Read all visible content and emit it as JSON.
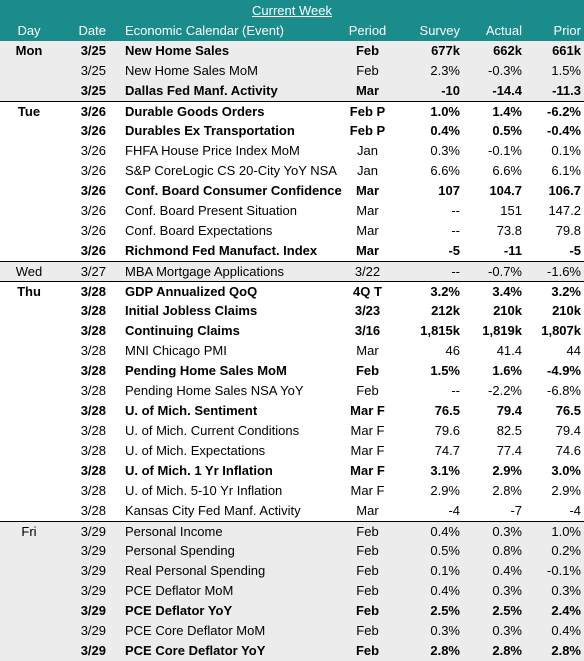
{
  "title": "Current Week",
  "headers": {
    "day": "Day",
    "date": "Date",
    "event": "Economic Calendar (Event)",
    "period": "Period",
    "survey": "Survey",
    "actual": "Actual",
    "prior": "Prior"
  },
  "rows": [
    {
      "day": "Mon",
      "date": "3/25",
      "event": "New Home Sales",
      "period": "Feb",
      "survey": "677k",
      "actual": "662k",
      "prior": "661k",
      "bold": true,
      "shade": true,
      "first": false
    },
    {
      "day": "",
      "date": "3/25",
      "event": "New Home Sales MoM",
      "period": "Feb",
      "survey": "2.3%",
      "actual": "-0.3%",
      "prior": "1.5%",
      "bold": false,
      "shade": true,
      "first": false
    },
    {
      "day": "",
      "date": "3/25",
      "event": "Dallas Fed Manf. Activity",
      "period": "Mar",
      "survey": "-10",
      "actual": "-14.4",
      "prior": "-11.3",
      "bold": true,
      "shade": true,
      "first": false
    },
    {
      "day": "Tue",
      "date": "3/26",
      "event": "Durable Goods Orders",
      "period": "Feb P",
      "survey": "1.0%",
      "actual": "1.4%",
      "prior": "-6.2%",
      "bold": true,
      "shade": false,
      "first": true
    },
    {
      "day": "",
      "date": "3/26",
      "event": "Durables Ex Transportation",
      "period": "Feb P",
      "survey": "0.4%",
      "actual": "0.5%",
      "prior": "-0.4%",
      "bold": true,
      "shade": false,
      "first": false
    },
    {
      "day": "",
      "date": "3/26",
      "event": "FHFA House Price Index MoM",
      "period": "Jan",
      "survey": "0.3%",
      "actual": "-0.1%",
      "prior": "0.1%",
      "bold": false,
      "shade": false,
      "first": false
    },
    {
      "day": "",
      "date": "3/26",
      "event": "S&P CoreLogic CS 20-City YoY NSA",
      "period": "Jan",
      "survey": "6.6%",
      "actual": "6.6%",
      "prior": "6.1%",
      "bold": false,
      "shade": false,
      "first": false
    },
    {
      "day": "",
      "date": "3/26",
      "event": "Conf. Board Consumer Confidence",
      "period": "Mar",
      "survey": "107",
      "actual": "104.7",
      "prior": "106.7",
      "bold": true,
      "shade": false,
      "first": false
    },
    {
      "day": "",
      "date": "3/26",
      "event": "Conf. Board Present Situation",
      "period": "Mar",
      "survey": "--",
      "actual": "151",
      "prior": "147.2",
      "bold": false,
      "shade": false,
      "first": false
    },
    {
      "day": "",
      "date": "3/26",
      "event": "Conf. Board Expectations",
      "period": "Mar",
      "survey": "--",
      "actual": "73.8",
      "prior": "79.8",
      "bold": false,
      "shade": false,
      "first": false
    },
    {
      "day": "",
      "date": "3/26",
      "event": "Richmond Fed Manufact. Index",
      "period": "Mar",
      "survey": "-5",
      "actual": "-11",
      "prior": "-5",
      "bold": true,
      "shade": false,
      "first": false
    },
    {
      "day": "Wed",
      "date": "3/27",
      "event": "MBA Mortgage Applications",
      "period": "3/22",
      "survey": "--",
      "actual": "-0.7%",
      "prior": "-1.6%",
      "bold": false,
      "shade": true,
      "first": true
    },
    {
      "day": "Thu",
      "date": "3/28",
      "event": "GDP Annualized QoQ",
      "period": "4Q T",
      "survey": "3.2%",
      "actual": "3.4%",
      "prior": "3.2%",
      "bold": true,
      "shade": false,
      "first": true
    },
    {
      "day": "",
      "date": "3/28",
      "event": "Initial Jobless Claims",
      "period": "3/23",
      "survey": "212k",
      "actual": "210k",
      "prior": "210k",
      "bold": true,
      "shade": false,
      "first": false
    },
    {
      "day": "",
      "date": "3/28",
      "event": "Continuing Claims",
      "period": "3/16",
      "survey": "1,815k",
      "actual": "1,819k",
      "prior": "1,807k",
      "bold": true,
      "shade": false,
      "first": false
    },
    {
      "day": "",
      "date": "3/28",
      "event": "MNI Chicago PMI",
      "period": "Mar",
      "survey": "46",
      "actual": "41.4",
      "prior": "44",
      "bold": false,
      "shade": false,
      "first": false
    },
    {
      "day": "",
      "date": "3/28",
      "event": "Pending Home Sales MoM",
      "period": "Feb",
      "survey": "1.5%",
      "actual": "1.6%",
      "prior": "-4.9%",
      "bold": true,
      "shade": false,
      "first": false
    },
    {
      "day": "",
      "date": "3/28",
      "event": "Pending Home Sales NSA YoY",
      "period": "Feb",
      "survey": "--",
      "actual": "-2.2%",
      "prior": "-6.8%",
      "bold": false,
      "shade": false,
      "first": false
    },
    {
      "day": "",
      "date": "3/28",
      "event": "U. of Mich. Sentiment",
      "period": "Mar F",
      "survey": "76.5",
      "actual": "79.4",
      "prior": "76.5",
      "bold": true,
      "shade": false,
      "first": false
    },
    {
      "day": "",
      "date": "3/28",
      "event": "U. of Mich. Current Conditions",
      "period": "Mar F",
      "survey": "79.6",
      "actual": "82.5",
      "prior": "79.4",
      "bold": false,
      "shade": false,
      "first": false
    },
    {
      "day": "",
      "date": "3/28",
      "event": "U. of Mich. Expectations",
      "period": "Mar F",
      "survey": "74.7",
      "actual": "77.4",
      "prior": "74.6",
      "bold": false,
      "shade": false,
      "first": false
    },
    {
      "day": "",
      "date": "3/28",
      "event": "U. of Mich. 1 Yr Inflation",
      "period": "Mar F",
      "survey": "3.1%",
      "actual": "2.9%",
      "prior": "3.0%",
      "bold": true,
      "shade": false,
      "first": false
    },
    {
      "day": "",
      "date": "3/28",
      "event": "U. of Mich. 5-10 Yr Inflation",
      "period": "Mar F",
      "survey": "2.9%",
      "actual": "2.8%",
      "prior": "2.9%",
      "bold": false,
      "shade": false,
      "first": false
    },
    {
      "day": "",
      "date": "3/28",
      "event": "Kansas City Fed Manf. Activity",
      "period": "Mar",
      "survey": "-4",
      "actual": "-7",
      "prior": "-4",
      "bold": false,
      "shade": false,
      "first": false
    },
    {
      "day": "Fri",
      "date": "3/29",
      "event": "Personal Income",
      "period": "Feb",
      "survey": "0.4%",
      "actual": "0.3%",
      "prior": "1.0%",
      "bold": false,
      "shade": true,
      "first": true
    },
    {
      "day": "",
      "date": "3/29",
      "event": "Personal Spending",
      "period": "Feb",
      "survey": "0.5%",
      "actual": "0.8%",
      "prior": "0.2%",
      "bold": false,
      "shade": true,
      "first": false
    },
    {
      "day": "",
      "date": "3/29",
      "event": "Real Personal Spending",
      "period": "Feb",
      "survey": "0.1%",
      "actual": "0.4%",
      "prior": "-0.1%",
      "bold": false,
      "shade": true,
      "first": false
    },
    {
      "day": "",
      "date": "3/29",
      "event": "PCE Deflator MoM",
      "period": "Feb",
      "survey": "0.4%",
      "actual": "0.3%",
      "prior": "0.3%",
      "bold": false,
      "shade": true,
      "first": false
    },
    {
      "day": "",
      "date": "3/29",
      "event": "PCE Deflator YoY",
      "period": "Feb",
      "survey": "2.5%",
      "actual": "2.5%",
      "prior": "2.4%",
      "bold": true,
      "shade": true,
      "first": false
    },
    {
      "day": "",
      "date": "3/29",
      "event": "PCE Core Deflator MoM",
      "period": "Feb",
      "survey": "0.3%",
      "actual": "0.3%",
      "prior": "0.4%",
      "bold": false,
      "shade": true,
      "first": false
    },
    {
      "day": "",
      "date": "3/29",
      "event": "PCE Core Deflator YoY",
      "period": "Feb",
      "survey": "2.8%",
      "actual": "2.8%",
      "prior": "2.8%",
      "bold": true,
      "shade": true,
      "first": false
    }
  ]
}
